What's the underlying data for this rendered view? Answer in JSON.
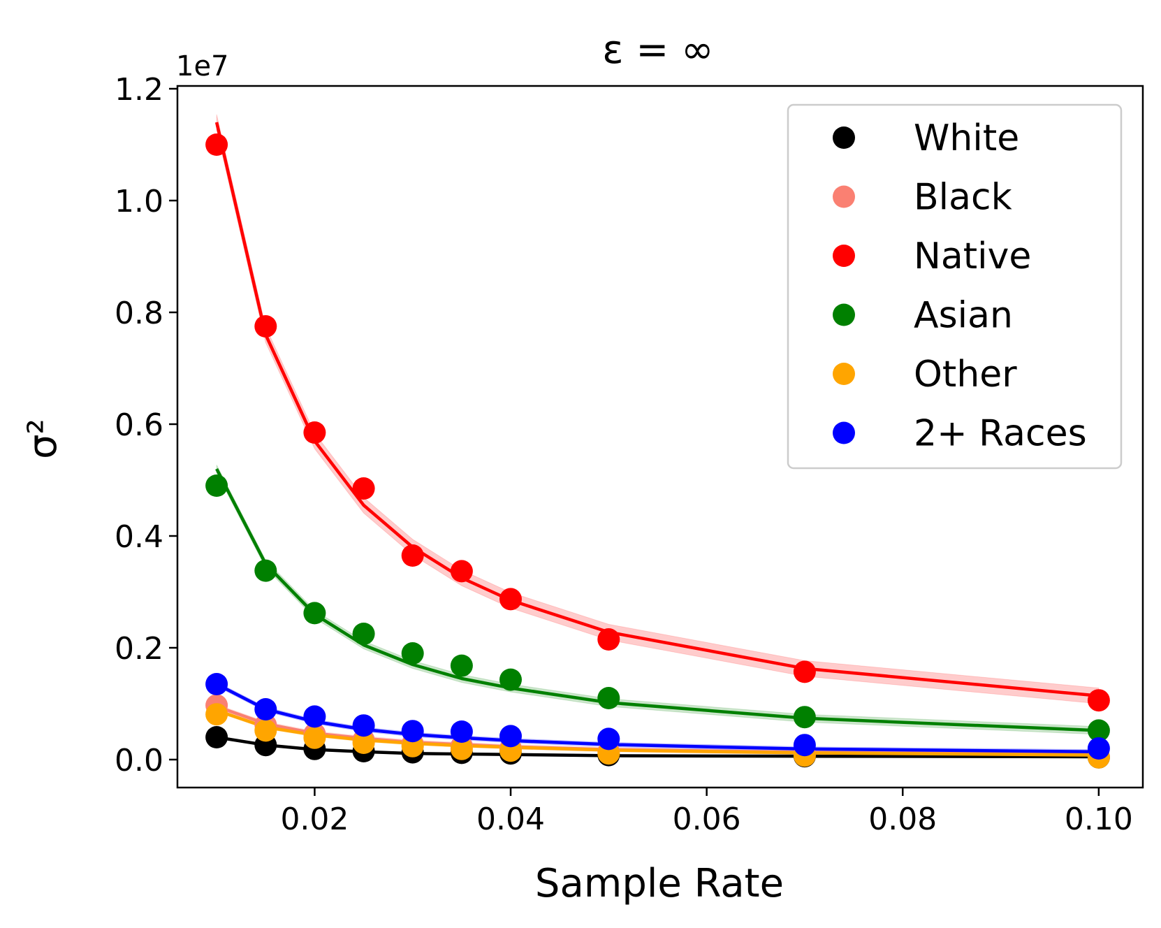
{
  "chart_data": {
    "type": "line",
    "title": "ε = ∞",
    "xlabel": "Sample Rate",
    "ylabel": "σ²",
    "y_offset_label": "1e7",
    "xlim": [
      0.006,
      0.1045
    ],
    "ylim": [
      -0.05,
      1.205
    ],
    "y_scale_factor": 10000000,
    "x_ticks": [
      0.02,
      0.04,
      0.06,
      0.08,
      0.1
    ],
    "x_tick_labels": [
      "0.02",
      "0.04",
      "0.06",
      "0.08",
      "0.10"
    ],
    "y_ticks": [
      0.0,
      0.2,
      0.4,
      0.6,
      0.8,
      1.0,
      1.2
    ],
    "y_tick_labels": [
      "0.0",
      "0.2",
      "0.4",
      "0.6",
      "0.8",
      "1.0",
      "1.2"
    ],
    "grid": false,
    "legend_position": "top-right",
    "x": [
      0.01,
      0.015,
      0.02,
      0.025,
      0.03,
      0.035,
      0.04,
      0.05,
      0.07,
      0.1
    ],
    "series": [
      {
        "name": "White",
        "color": "#000000",
        "points": [
          0.04,
          0.026,
          0.019,
          0.015,
          0.013,
          0.012,
          0.011,
          0.008,
          0.006,
          0.004
        ],
        "fit": [
          0.04,
          0.026,
          0.018,
          0.014,
          0.011,
          0.01,
          0.009,
          0.007,
          0.006,
          0.005
        ],
        "band": 0.002
      },
      {
        "name": "Black",
        "color": "#fa8072",
        "points": [
          0.097,
          0.062,
          0.046,
          0.035,
          0.028,
          0.024,
          0.02,
          0.014,
          0.009,
          0.005
        ],
        "fit": [
          0.095,
          0.064,
          0.047,
          0.038,
          0.031,
          0.027,
          0.023,
          0.018,
          0.013,
          0.009
        ],
        "band": 0.004
      },
      {
        "name": "Native",
        "color": "#ff0000",
        "points": [
          1.1,
          0.775,
          0.585,
          0.485,
          0.365,
          0.337,
          0.287,
          0.215,
          0.157,
          0.106
        ],
        "fit": [
          1.14,
          0.76,
          0.57,
          0.455,
          0.38,
          0.325,
          0.285,
          0.228,
          0.163,
          0.114
        ],
        "band": 0.014
      },
      {
        "name": "Asian",
        "color": "#008000",
        "points": [
          0.49,
          0.338,
          0.262,
          0.225,
          0.19,
          0.168,
          0.143,
          0.11,
          0.076,
          0.052
        ],
        "fit": [
          0.52,
          0.35,
          0.26,
          0.205,
          0.17,
          0.145,
          0.128,
          0.102,
          0.074,
          0.052
        ],
        "band": 0.007
      },
      {
        "name": "Other",
        "color": "#ffa500",
        "points": [
          0.081,
          0.052,
          0.039,
          0.03,
          0.024,
          0.019,
          0.016,
          0.011,
          0.007,
          0.004
        ],
        "fit": [
          0.088,
          0.058,
          0.044,
          0.035,
          0.029,
          0.025,
          0.022,
          0.017,
          0.012,
          0.008
        ],
        "band": 0.003
      },
      {
        "name": "2+ Races",
        "color": "#0000ff",
        "points": [
          0.135,
          0.09,
          0.077,
          0.061,
          0.051,
          0.05,
          0.042,
          0.037,
          0.026,
          0.02
        ],
        "fit": [
          0.135,
          0.09,
          0.068,
          0.054,
          0.045,
          0.039,
          0.034,
          0.027,
          0.019,
          0.014
        ],
        "band": 0.004
      }
    ]
  }
}
